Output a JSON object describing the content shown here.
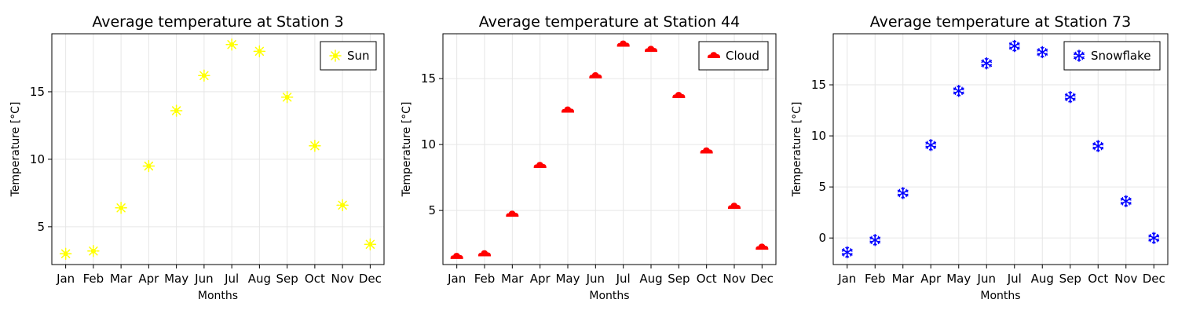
{
  "chart_data": [
    {
      "type": "scatter",
      "title": "Average temperature at Station 3",
      "xlabel": "Months",
      "ylabel": "Temperature [°C]",
      "categories": [
        "Jan",
        "Feb",
        "Mar",
        "Apr",
        "May",
        "Jun",
        "Jul",
        "Aug",
        "Sep",
        "Oct",
        "Nov",
        "Dec"
      ],
      "ylim": [
        2.2,
        19.3
      ],
      "yticks": [
        5,
        10,
        15
      ],
      "grid": true,
      "legend_position": "top-right",
      "series": [
        {
          "name": "Sun",
          "marker": "sun-icon",
          "color": "#ffff00",
          "values": [
            3.0,
            3.2,
            6.4,
            9.5,
            13.6,
            16.2,
            18.5,
            18.0,
            14.6,
            11.0,
            6.6,
            3.7
          ]
        }
      ]
    },
    {
      "type": "scatter",
      "title": "Average temperature at Station 44",
      "xlabel": "Months",
      "ylabel": "Temperature [°C]",
      "categories": [
        "Jan",
        "Feb",
        "Mar",
        "Apr",
        "May",
        "Jun",
        "Jul",
        "Aug",
        "Sep",
        "Oct",
        "Nov",
        "Dec"
      ],
      "ylim": [
        0.9,
        18.4
      ],
      "yticks": [
        5,
        10,
        15
      ],
      "grid": true,
      "legend_position": "top-right",
      "series": [
        {
          "name": "Cloud",
          "marker": "cloud-icon",
          "color": "#ff0000",
          "values": [
            1.5,
            1.7,
            4.7,
            8.4,
            12.6,
            15.2,
            17.6,
            17.2,
            13.7,
            9.5,
            5.3,
            2.2
          ]
        }
      ]
    },
    {
      "type": "scatter",
      "title": "Average temperature at Station 73",
      "xlabel": "Months",
      "ylabel": "Temperature [°C]",
      "categories": [
        "Jan",
        "Feb",
        "Mar",
        "Apr",
        "May",
        "Jun",
        "Jul",
        "Aug",
        "Sep",
        "Oct",
        "Nov",
        "Dec"
      ],
      "ylim": [
        -2.6,
        20.0
      ],
      "yticks": [
        0,
        5,
        10,
        15
      ],
      "grid": true,
      "legend_position": "top-right",
      "series": [
        {
          "name": "Snowflake",
          "marker": "snowflake-icon",
          "color": "#0000ff",
          "values": [
            -1.4,
            -0.2,
            4.4,
            9.1,
            14.4,
            17.1,
            18.8,
            18.2,
            13.8,
            9.0,
            3.6,
            0.0
          ]
        }
      ]
    }
  ]
}
